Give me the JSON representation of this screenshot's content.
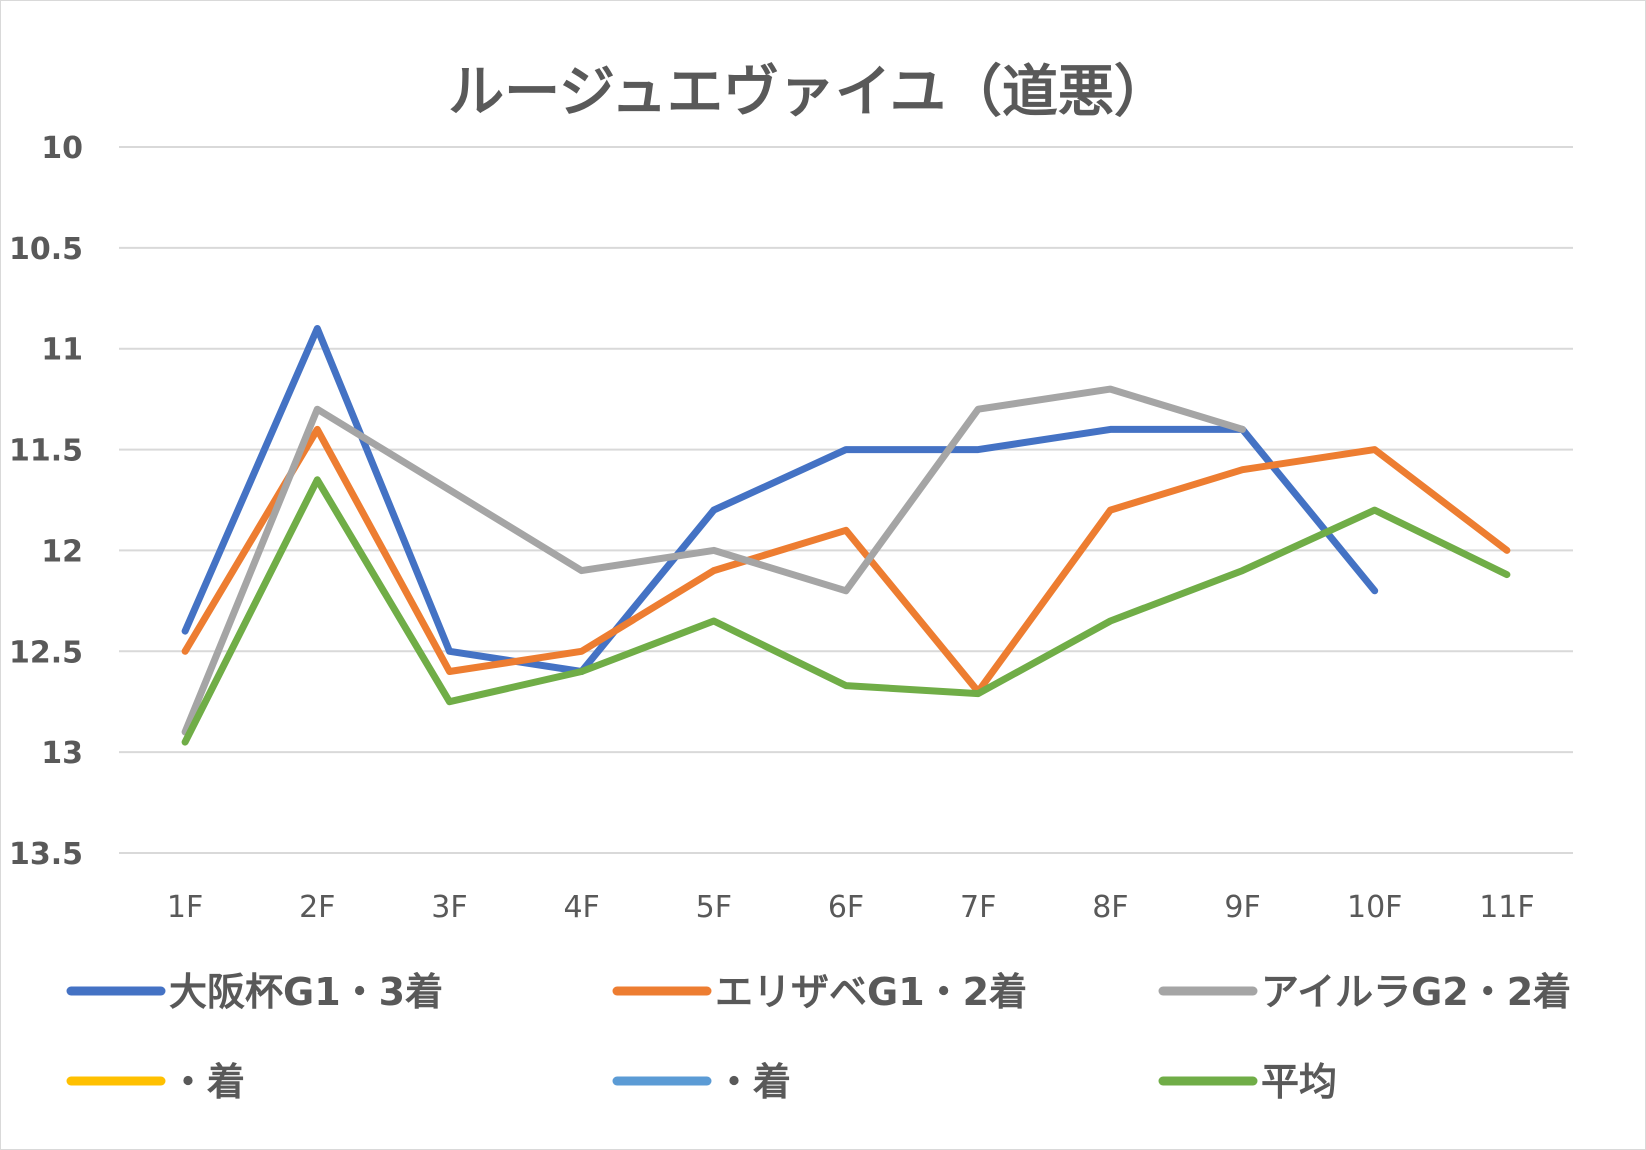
{
  "chart_data": {
    "type": "line",
    "title": "ルージュエヴァイユ（道悪）",
    "xlabel": "",
    "ylabel": "",
    "categories": [
      "1F",
      "2F",
      "3F",
      "4F",
      "5F",
      "6F",
      "7F",
      "8F",
      "9F",
      "10F",
      "11F"
    ],
    "y_ticks": [
      "10",
      "10.5",
      "11",
      "11.5",
      "12",
      "12.5",
      "13",
      "13.5"
    ],
    "ylim": [
      10,
      13.5
    ],
    "y_reversed": true,
    "grid": true,
    "legend_position": "bottom",
    "series": [
      {
        "name": "大阪杯G1・3着",
        "color": "#4472c4",
        "values": [
          12.4,
          10.9,
          12.5,
          12.6,
          11.8,
          11.5,
          11.5,
          11.4,
          11.4,
          12.2,
          null
        ]
      },
      {
        "name": "エリザベG1・2着",
        "color": "#ed7d31",
        "values": [
          12.5,
          11.4,
          12.6,
          12.5,
          12.1,
          11.9,
          12.7,
          11.8,
          11.6,
          11.5,
          12.0
        ]
      },
      {
        "name": "アイルラG2・2着",
        "color": "#a5a5a5",
        "values": [
          12.9,
          11.3,
          11.7,
          12.1,
          12.0,
          12.2,
          11.3,
          11.2,
          11.4,
          null,
          null
        ]
      },
      {
        "name": "・着",
        "color": "#ffc000",
        "values": [
          null,
          null,
          null,
          null,
          null,
          null,
          null,
          null,
          null,
          null,
          null
        ]
      },
      {
        "name": "・着",
        "color": "#5b9bd5",
        "values": [
          null,
          null,
          null,
          null,
          null,
          null,
          null,
          null,
          null,
          null,
          null
        ]
      },
      {
        "name": "平均",
        "color": "#70ad47",
        "values": [
          12.95,
          11.65,
          12.75,
          12.6,
          12.35,
          12.67,
          12.71,
          12.35,
          12.1,
          11.8,
          12.12
        ]
      }
    ]
  }
}
